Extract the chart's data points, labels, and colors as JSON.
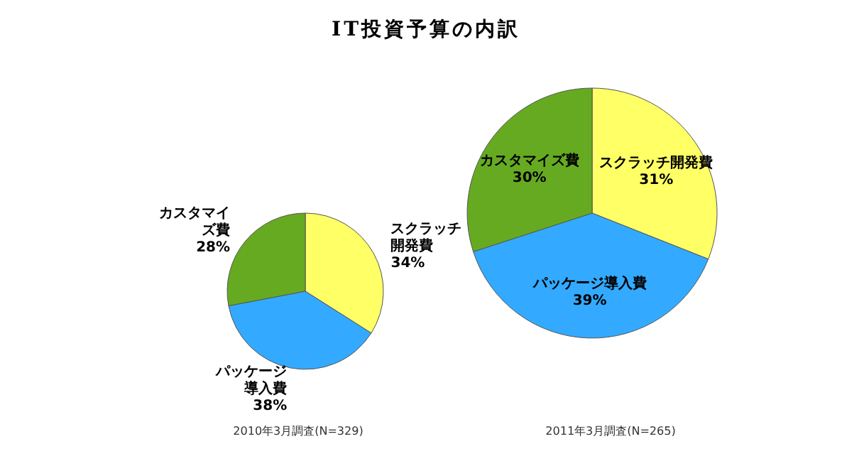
{
  "chart_data": [
    {
      "type": "pie",
      "title": "IT投資予算の内訳",
      "categories": [
        "スクラッチ開発費",
        "パッケージ導入費",
        "カスタマイズ費"
      ],
      "values": [
        34,
        38,
        28
      ],
      "colors": [
        "#ffff66",
        "#33aaff",
        "#66aa22"
      ],
      "value_labels": [
        "34%",
        "38%",
        "28%"
      ],
      "annotations": [
        "2010年3月調査(N=329)"
      ]
    },
    {
      "type": "pie",
      "categories": [
        "スクラッチ開発費",
        "パッケージ導入費",
        "カスタマイズ費"
      ],
      "values": [
        31,
        39,
        30
      ],
      "colors": [
        "#ffff66",
        "#33aaff",
        "#66aa22"
      ],
      "value_labels": [
        "31%",
        "39%",
        "30%"
      ],
      "annotations": [
        "2011年3月調査(N=265)"
      ]
    }
  ]
}
